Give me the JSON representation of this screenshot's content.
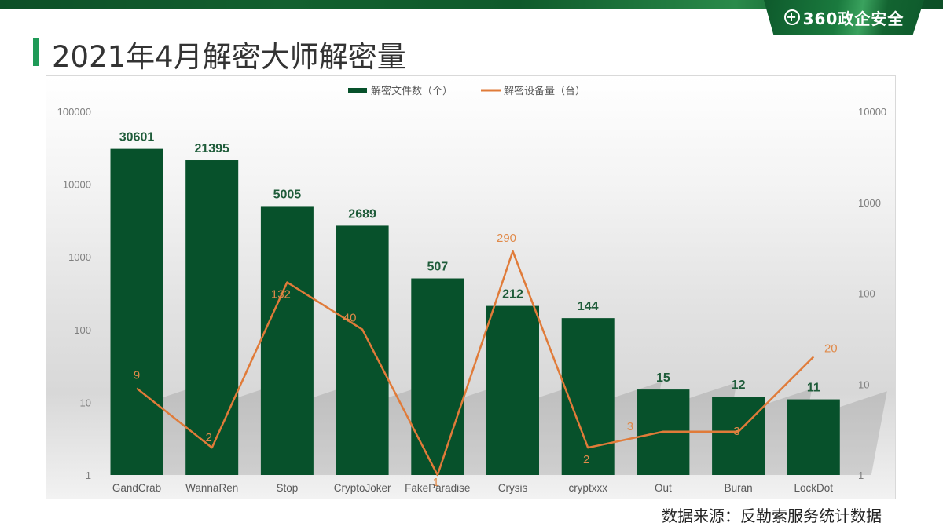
{
  "header": {
    "title": "2021年4月解密大师解密量",
    "logo_text": "360政企安全",
    "logo_icon": "plus-circle-icon"
  },
  "footer": {
    "source": "数据来源：反勒索服务统计数据"
  },
  "colors": {
    "bar": "#07512b",
    "line": "#e07b39",
    "bar_label": "#1f5c3a",
    "line_label": "#e08a4a",
    "accent": "#1f9a57"
  },
  "chart_data": {
    "type": "bar",
    "title": "2021年4月解密大师解密量",
    "categories": [
      "GandCrab",
      "WannaRen",
      "Stop",
      "CryptoJoker",
      "FakeParadise",
      "Crysis",
      "cryptxxx",
      "Out",
      "Buran",
      "LockDot"
    ],
    "series": [
      {
        "name": "解密文件数（个）",
        "type": "bar",
        "axis": "left",
        "values": [
          30601,
          21395,
          5005,
          2689,
          507,
          212,
          144,
          15,
          12,
          11
        ]
      },
      {
        "name": "解密设备量（台）",
        "type": "line",
        "axis": "right",
        "values": [
          9,
          2,
          132,
          40,
          1,
          290,
          2,
          3,
          3,
          20
        ]
      }
    ],
    "legend": [
      "解密文件数（个）",
      "解密设备量（台）"
    ],
    "legend_position": "top",
    "y_left": {
      "scale": "log",
      "ticks": [
        "1",
        "10",
        "100",
        "1000",
        "10000",
        "100000"
      ],
      "range": [
        1,
        100000
      ]
    },
    "y_right": {
      "scale": "log",
      "ticks": [
        "1",
        "10",
        "100",
        "1000",
        "10000"
      ],
      "range": [
        1,
        10000
      ]
    },
    "xlabel": "",
    "ylabel": "",
    "grid": false
  }
}
